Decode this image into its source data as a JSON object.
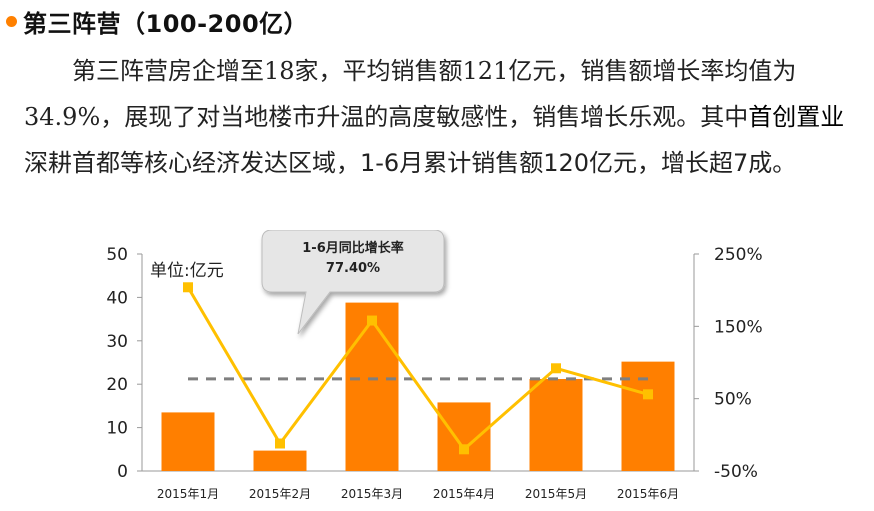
{
  "header": {
    "title": "第三阵营（100-200亿）"
  },
  "paragraph": {
    "part1": "第三阵营房企增至18家，平均销售额121亿元，销售额增长率均值为34.9%，展现了对当地楼市升温的高度敏感性，销售增长乐观。其中",
    "part2": "首创置业",
    "part3": "深耕首都等核心经济发达区域，",
    "part4": "1-6月累计销售额120亿元，增长超7成。"
  },
  "colors": {
    "bullet": "#ff8000",
    "bar": "#ff7f00",
    "line": "#ffc000",
    "avg_line": "#7f7f7f",
    "callout_fill": "#e6e6e6"
  },
  "chart_data": {
    "type": "bar",
    "unit_label": "单位:亿元",
    "categories": [
      "2015年1月",
      "2015年2月",
      "2015年3月",
      "2015年4月",
      "2015年5月",
      "2015年6月"
    ],
    "series": [
      {
        "values": [
          13.5,
          4.7,
          38.8,
          15.8,
          21.2,
          25.2
        ],
        "axis": "left"
      },
      {
        "values": [
          2.04,
          -0.12,
          1.58,
          -0.2,
          0.92,
          0.56
        ],
        "axis": "right",
        "type": "line"
      }
    ],
    "average_line": {
      "value": 0.774,
      "axis": "right"
    },
    "y_left": {
      "min": 0,
      "max": 50,
      "ticks": [
        0,
        10,
        20,
        30,
        40,
        50
      ]
    },
    "y_right": {
      "min": -0.5,
      "max": 2.5,
      "ticks": [
        "-50%",
        "50%",
        "150%",
        "250%"
      ]
    },
    "callout": {
      "line1": "1-6月同比增长率",
      "line2": "77.40%"
    }
  }
}
